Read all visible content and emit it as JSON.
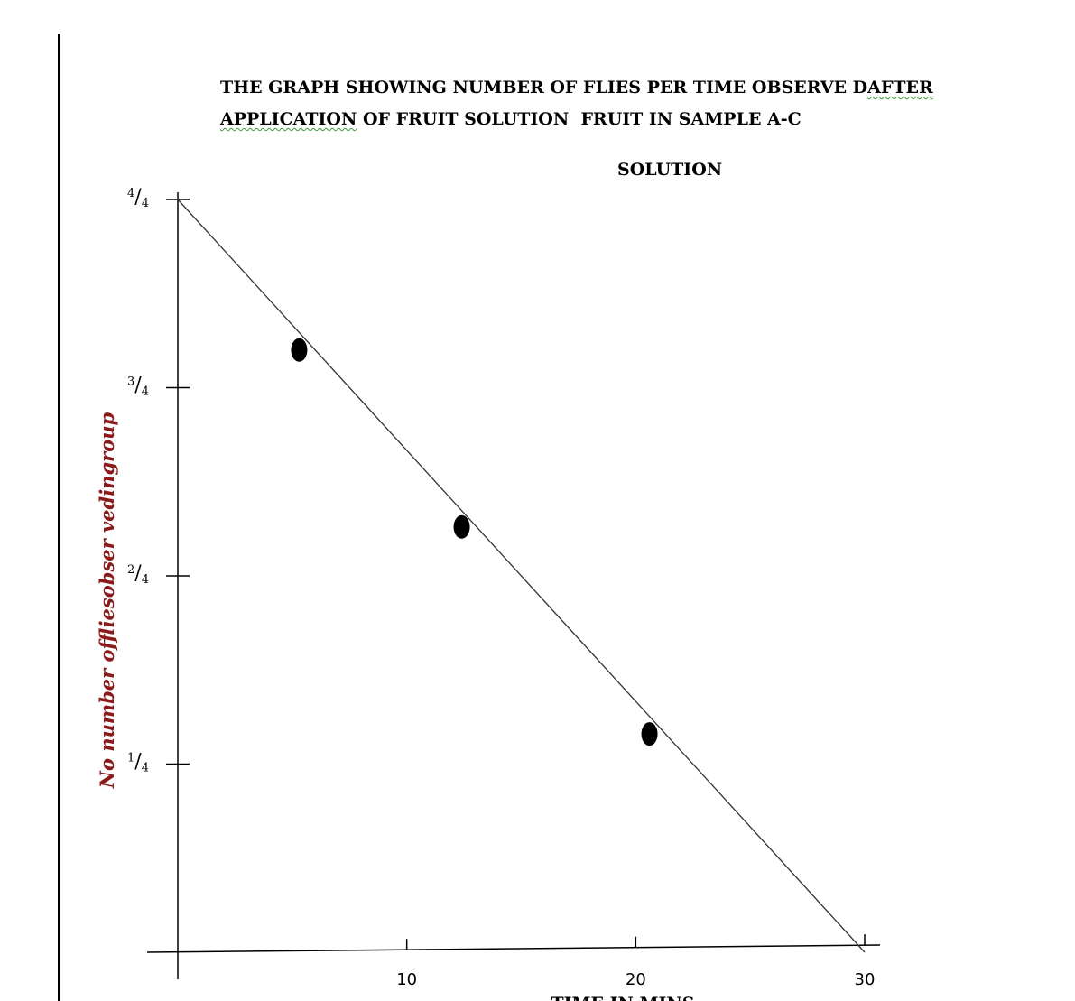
{
  "title": {
    "line1_main": "THE GRAPH SHOWING NUMBER OF FLIES PER TIME OBSERVE D",
    "line1_marked": "AFTER",
    "line2_marked": "APPLICATION",
    "line2_rest": " OF FRUIT SOLUTION  FRUIT IN SAMPLE A-C",
    "line3": "SOLUTION"
  },
  "colors": {
    "axis": "#000000",
    "line": "#333333",
    "points": "#000000",
    "ylabel": "#8b1a1a",
    "spellcheck_underline": "#3a9a3a"
  },
  "chart_data": {
    "type": "line",
    "title": "THE GRAPH SHOWING NUMBER OF FLIES PER TIME OBSERVE D AFTER APPLICATION OF FRUIT SOLUTION  FRUIT IN SAMPLE A-C SOLUTION",
    "xlabel": "TIME IN MINS",
    "ylabel": "No number of flies observed in group",
    "ylabel_display": "No number offliesobser vedingroup",
    "x_ticks": [
      10,
      20,
      30
    ],
    "y_ticks": [
      {
        "value": 0.25,
        "label_num": "1",
        "label_den": "4"
      },
      {
        "value": 0.5,
        "label_num": "2",
        "label_den": "4"
      },
      {
        "value": 0.75,
        "label_num": "3",
        "label_den": "4"
      },
      {
        "value": 1.0,
        "label_num": "4",
        "label_den": "4"
      }
    ],
    "xlim": [
      0,
      30
    ],
    "ylim": [
      0,
      1
    ],
    "series": [
      {
        "line": {
          "x": [
            0,
            30
          ],
          "y": [
            1.0,
            0.0
          ]
        },
        "points": [
          {
            "x": 5.3,
            "y": 0.8
          },
          {
            "x": 12.4,
            "y": 0.565
          },
          {
            "x": 20.6,
            "y": 0.29
          }
        ]
      }
    ],
    "grid": false,
    "legend": "none"
  }
}
